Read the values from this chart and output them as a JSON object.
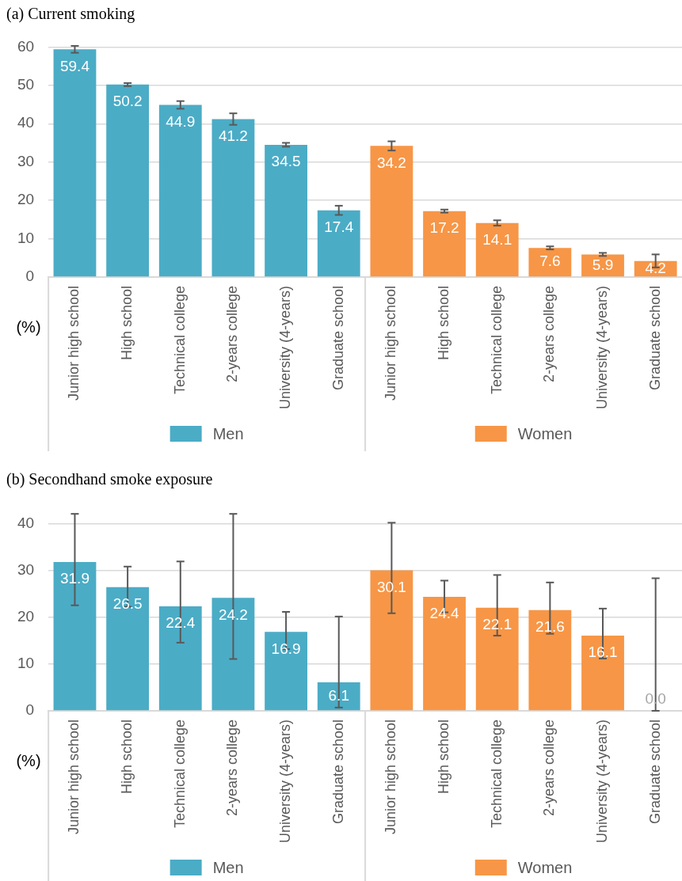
{
  "chart_data": [
    {
      "type": "bar",
      "title": "(a) Current smoking",
      "ylabel": "(%)",
      "categories": [
        "Junior high school",
        "High school",
        "Technical college",
        "2-years college",
        "University (4-years)",
        "Graduate school",
        "Junior high school",
        "High school",
        "Technical college",
        "2-years college",
        "University (4-years)",
        "Graduate school"
      ],
      "series": [
        {
          "name": "Men",
          "color": "#4bacc6",
          "values": [
            59.4,
            50.2,
            44.9,
            41.2,
            34.5,
            17.4,
            null,
            null,
            null,
            null,
            null,
            null
          ],
          "errors": [
            0.9,
            0.4,
            1.0,
            1.5,
            0.5,
            1.2,
            null,
            null,
            null,
            null,
            null,
            null
          ]
        },
        {
          "name": "Women",
          "color": "#f79646",
          "values": [
            null,
            null,
            null,
            null,
            null,
            null,
            34.2,
            17.2,
            14.1,
            7.6,
            5.9,
            4.2
          ],
          "errors": [
            null,
            null,
            null,
            null,
            null,
            null,
            1.2,
            0.4,
            0.7,
            0.4,
            0.4,
            1.7
          ]
        }
      ],
      "ylim": [
        0,
        60
      ],
      "yticks": [
        0,
        10,
        20,
        30,
        40,
        50,
        60
      ],
      "grid": true,
      "legend": "bottom",
      "data_labels": true
    },
    {
      "type": "bar",
      "title": "(b) Secondhand smoke exposure",
      "ylabel": "(%)",
      "categories": [
        "Junior high school",
        "High school",
        "Technical college",
        "2-years college",
        "University (4-years)",
        "Graduate school",
        "Junior high school",
        "High school",
        "Technical college",
        "2-years college",
        "University (4-years)",
        "Graduate school"
      ],
      "series": [
        {
          "name": "Men",
          "color": "#4bacc6",
          "values": [
            31.9,
            26.5,
            22.4,
            24.2,
            16.9,
            6.1,
            null,
            null,
            null,
            null,
            null,
            null
          ],
          "errors": [
            [
              22.6,
              42.2
            ],
            [
              22.3,
              30.9
            ],
            [
              14.6,
              32.0
            ],
            [
              11.1,
              42.2
            ],
            [
              13.2,
              21.2
            ],
            [
              0.7,
              20.2
            ],
            null,
            null,
            null,
            null,
            null,
            null
          ],
          "value_labels": [
            "31.9",
            "26.5",
            "22.4",
            "24.2",
            "16.9",
            "6.1",
            null,
            null,
            null,
            null,
            null,
            null
          ]
        },
        {
          "name": "Women",
          "color": "#f79646",
          "values": [
            null,
            null,
            null,
            null,
            null,
            null,
            30.1,
            24.4,
            22.1,
            21.6,
            16.1,
            0.0
          ],
          "errors": [
            null,
            null,
            null,
            null,
            null,
            null,
            [
              20.9,
              40.3
            ],
            [
              21.1,
              27.9
            ],
            [
              16.1,
              29.1
            ],
            [
              16.5,
              27.5
            ],
            [
              11.2,
              21.9
            ],
            [
              0.0,
              28.4
            ]
          ],
          "value_labels": [
            null,
            null,
            null,
            null,
            null,
            null,
            "30.1",
            "24.4",
            "22.1",
            "21.6",
            "16.1",
            "0.0"
          ]
        }
      ],
      "ylim": [
        0,
        42.5
      ],
      "yticks": [
        0,
        10,
        20,
        30,
        40
      ],
      "grid": true,
      "legend": "bottom"
    }
  ]
}
